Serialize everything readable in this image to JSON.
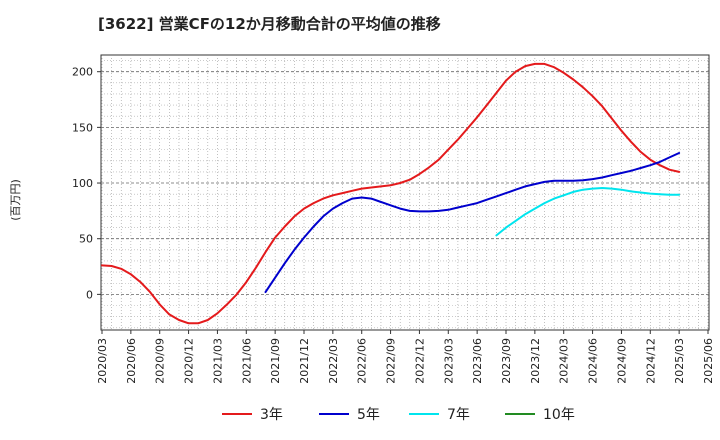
{
  "title": "[3622]  営業CFの12か月移動合計の平均値の推移",
  "chart_data": {
    "type": "line",
    "title": "[3622]  営業CFの12か月移動合計の平均値の推移",
    "xlabel": "",
    "ylabel": "(百万円)",
    "ylim": [
      -32,
      215
    ],
    "yticks": [
      0,
      50,
      100,
      150,
      200
    ],
    "xticks": [
      "2020/03",
      "2020/06",
      "2020/09",
      "2020/12",
      "2021/03",
      "2021/06",
      "2021/09",
      "2021/12",
      "2022/03",
      "2022/06",
      "2022/09",
      "2022/12",
      "2023/03",
      "2023/06",
      "2023/09",
      "2023/12",
      "2024/03",
      "2024/06",
      "2024/09",
      "2024/12",
      "2025/03",
      "2025/06"
    ],
    "grid": true,
    "legend_position": "bottom",
    "series": [
      {
        "name": "3年",
        "color": "#e41a1c",
        "points": [
          [
            "2020/03",
            26
          ],
          [
            "2020/04",
            25.5
          ],
          [
            "2020/05",
            23
          ],
          [
            "2020/06",
            18
          ],
          [
            "2020/07",
            11
          ],
          [
            "2020/08",
            2
          ],
          [
            "2020/09",
            -9
          ],
          [
            "2020/10",
            -18
          ],
          [
            "2020/11",
            -23
          ],
          [
            "2020/12",
            -26
          ],
          [
            "2021/01",
            -26
          ],
          [
            "2021/02",
            -23
          ],
          [
            "2021/03",
            -17
          ],
          [
            "2021/04",
            -9
          ],
          [
            "2021/05",
            0
          ],
          [
            "2021/06",
            11
          ],
          [
            "2021/07",
            24
          ],
          [
            "2021/08",
            38
          ],
          [
            "2021/09",
            51
          ],
          [
            "2021/10",
            61
          ],
          [
            "2021/11",
            70
          ],
          [
            "2021/12",
            77
          ],
          [
            "2022/01",
            82
          ],
          [
            "2022/02",
            86
          ],
          [
            "2022/03",
            89
          ],
          [
            "2022/04",
            91
          ],
          [
            "2022/05",
            93
          ],
          [
            "2022/06",
            95
          ],
          [
            "2022/07",
            96
          ],
          [
            "2022/08",
            97
          ],
          [
            "2022/09",
            98
          ],
          [
            "2022/10",
            100
          ],
          [
            "2022/11",
            103
          ],
          [
            "2022/12",
            108
          ],
          [
            "2023/01",
            114
          ],
          [
            "2023/02",
            121
          ],
          [
            "2023/03",
            130
          ],
          [
            "2023/04",
            139
          ],
          [
            "2023/05",
            149
          ],
          [
            "2023/06",
            159
          ],
          [
            "2023/07",
            170
          ],
          [
            "2023/08",
            181
          ],
          [
            "2023/09",
            192
          ],
          [
            "2023/10",
            200
          ],
          [
            "2023/11",
            205
          ],
          [
            "2023/12",
            207
          ],
          [
            "2024/01",
            207
          ],
          [
            "2024/02",
            204
          ],
          [
            "2024/03",
            199
          ],
          [
            "2024/04",
            193
          ],
          [
            "2024/05",
            186
          ],
          [
            "2024/06",
            178
          ],
          [
            "2024/07",
            169
          ],
          [
            "2024/08",
            158
          ],
          [
            "2024/09",
            147
          ],
          [
            "2024/10",
            137
          ],
          [
            "2024/11",
            128
          ],
          [
            "2024/12",
            121
          ],
          [
            "2025/01",
            116
          ],
          [
            "2025/02",
            112
          ],
          [
            "2025/03",
            110
          ]
        ]
      },
      {
        "name": "5年",
        "color": "#0000cd",
        "points": [
          [
            "2021/08",
            2
          ],
          [
            "2021/09",
            15
          ],
          [
            "2021/10",
            28
          ],
          [
            "2021/11",
            40
          ],
          [
            "2021/12",
            51
          ],
          [
            "2022/01",
            61
          ],
          [
            "2022/02",
            70
          ],
          [
            "2022/03",
            77
          ],
          [
            "2022/04",
            82
          ],
          [
            "2022/05",
            86
          ],
          [
            "2022/06",
            87
          ],
          [
            "2022/07",
            86
          ],
          [
            "2022/08",
            83
          ],
          [
            "2022/09",
            80
          ],
          [
            "2022/10",
            77
          ],
          [
            "2022/11",
            75
          ],
          [
            "2022/12",
            74.5
          ],
          [
            "2023/01",
            74.5
          ],
          [
            "2023/02",
            75
          ],
          [
            "2023/03",
            76
          ],
          [
            "2023/04",
            78
          ],
          [
            "2023/05",
            80
          ],
          [
            "2023/06",
            82
          ],
          [
            "2023/07",
            85
          ],
          [
            "2023/08",
            88
          ],
          [
            "2023/09",
            91
          ],
          [
            "2023/10",
            94
          ],
          [
            "2023/11",
            97
          ],
          [
            "2023/12",
            99
          ],
          [
            "2024/01",
            101
          ],
          [
            "2024/02",
            102
          ],
          [
            "2024/03",
            102
          ],
          [
            "2024/04",
            102
          ],
          [
            "2024/05",
            102.5
          ],
          [
            "2024/06",
            103.5
          ],
          [
            "2024/07",
            105
          ],
          [
            "2024/08",
            107
          ],
          [
            "2024/09",
            109
          ],
          [
            "2024/10",
            111
          ],
          [
            "2024/11",
            113.5
          ],
          [
            "2024/12",
            116
          ],
          [
            "2025/01",
            119
          ],
          [
            "2025/02",
            123
          ],
          [
            "2025/03",
            127
          ]
        ]
      },
      {
        "name": "7年",
        "color": "#00e5ee",
        "points": [
          [
            "2023/08",
            53
          ],
          [
            "2023/09",
            60
          ],
          [
            "2023/10",
            66
          ],
          [
            "2023/11",
            72
          ],
          [
            "2023/12",
            77
          ],
          [
            "2024/01",
            82
          ],
          [
            "2024/02",
            86
          ],
          [
            "2024/03",
            89
          ],
          [
            "2024/04",
            92
          ],
          [
            "2024/05",
            94
          ],
          [
            "2024/06",
            95
          ],
          [
            "2024/07",
            95.5
          ],
          [
            "2024/08",
            95
          ],
          [
            "2024/09",
            94
          ],
          [
            "2024/10",
            92.5
          ],
          [
            "2024/11",
            91.5
          ],
          [
            "2024/12",
            90.5
          ],
          [
            "2025/01",
            90
          ],
          [
            "2025/02",
            89.5
          ],
          [
            "2025/03",
            89.5
          ]
        ]
      },
      {
        "name": "10年",
        "color": "#228b22",
        "points": []
      }
    ]
  }
}
